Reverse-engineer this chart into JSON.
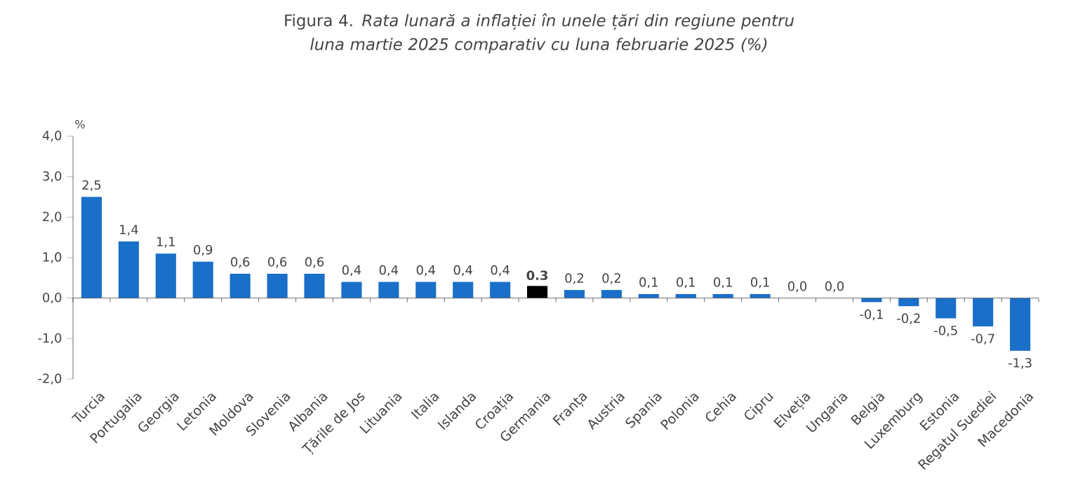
{
  "chart_data": {
    "type": "bar",
    "title": "Figura 4. *Rata lunară a inflației în unele țări din regiune pentru luna martie 2025 comparativ cu luna februarie 2025 (%)*",
    "ylabel": "%",
    "categories": [
      "Turcia",
      "Portugalia",
      "Georgia",
      "Letonia",
      "Moldova",
      "Slovenia",
      "Albania",
      "Țările de Jos",
      "Lituania",
      "Italia",
      "Islanda",
      "Croația",
      "Germania",
      "Franța",
      "Austria",
      "Spania",
      "Polonia",
      "Cehia",
      "Cipru",
      "Elveția",
      "Ungaria",
      "Belgia",
      "Luxemburg",
      "Estonia",
      "Regatul Suediei",
      "Macedonia"
    ],
    "values": [
      2.5,
      1.4,
      1.1,
      0.9,
      0.6,
      0.6,
      0.6,
      0.4,
      0.4,
      0.4,
      0.4,
      0.4,
      0.3,
      0.2,
      0.2,
      0.1,
      0.1,
      0.1,
      0.1,
      0.0,
      0.0,
      -0.1,
      -0.2,
      -0.5,
      -0.7,
      -1.3
    ],
    "value_labels": [
      "2,5",
      "1,4",
      "1,1",
      "0,9",
      "0,6",
      "0,6",
      "0,6",
      "0,4",
      "0,4",
      "0,4",
      "0,4",
      "0,4",
      "**0.3**",
      "0,2",
      "0,2",
      "0,1",
      "0,1",
      "0,1",
      "0,1",
      "0,0",
      "0,0",
      "-0,1",
      "-0,2",
      "-0,5",
      "-0,7",
      "-1,3"
    ],
    "colors": [
      "#1a6fc9",
      "#1a6fc9",
      "#1a6fc9",
      "#1a6fc9",
      "#1a6fc9",
      "#1a6fc9",
      "#1a6fc9",
      "#1a6fc9",
      "#1a6fc9",
      "#1a6fc9",
      "#1a6fc9",
      "#1a6fc9",
      "#000000",
      "#1a6fc9",
      "#1a6fc9",
      "#1a6fc9",
      "#1a6fc9",
      "#1a6fc9",
      "#1a6fc9",
      "#1a6fc9",
      "#1a6fc9",
      "#1a6fc9",
      "#1a6fc9",
      "#1a6fc9",
      "#1a6fc9",
      "#1a6fc9"
    ],
    "ylim": [
      -2,
      4
    ],
    "yticks": [
      {
        "value": -2,
        "label": "-2,0"
      },
      {
        "value": -1,
        "label": "-1,0"
      },
      {
        "value": 0,
        "label": "0,0"
      },
      {
        "value": 1,
        "label": "1,0"
      },
      {
        "value": 2,
        "label": "2,0"
      },
      {
        "value": 3,
        "label": "3,0"
      },
      {
        "value": 4,
        "label": "4,0"
      }
    ]
  }
}
